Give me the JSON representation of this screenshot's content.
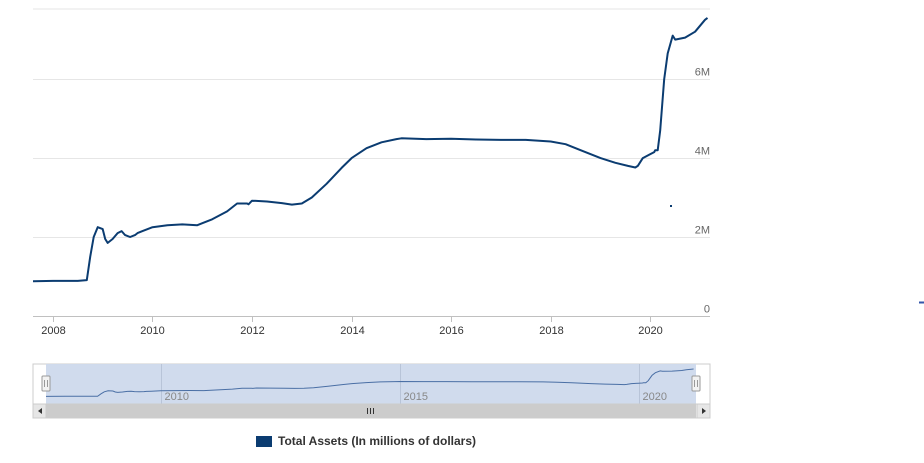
{
  "colors": {
    "series": "#0b3c71",
    "grid": "#e6e6e6",
    "axis_text": "#666666",
    "navigator_fill": "#ced9ec",
    "navigator_line": "#4a6fa5",
    "scrollbar": "#cccccc",
    "scrollbar_track": "#f2f2f2"
  },
  "chart_data": {
    "type": "line",
    "grid": true,
    "legend_position": "bottom-center",
    "ylim": [
      0,
      7800000
    ],
    "yaxis_side": "right",
    "y_ticks": [
      {
        "value": 0,
        "label": "0"
      },
      {
        "value": 2000000,
        "label": "2M"
      },
      {
        "value": 4000000,
        "label": "4M"
      },
      {
        "value": 6000000,
        "label": "6M"
      }
    ],
    "xlim": [
      2007.6,
      2021.2
    ],
    "x_ticks": [
      {
        "value": 2008,
        "label": "2008"
      },
      {
        "value": 2010,
        "label": "2010"
      },
      {
        "value": 2012,
        "label": "2012"
      },
      {
        "value": 2014,
        "label": "2014"
      },
      {
        "value": 2016,
        "label": "2016"
      },
      {
        "value": 2018,
        "label": "2018"
      },
      {
        "value": 2020,
        "label": "2020"
      }
    ],
    "navigator": {
      "x_ticks": [
        {
          "value": 2010,
          "label": "2010"
        },
        {
          "value": 2015,
          "label": "2015"
        },
        {
          "value": 2020,
          "label": "2020"
        }
      ]
    },
    "series": [
      {
        "name": "Total Assets (In millions of dollars)",
        "x": [
          2007.6,
          2008.0,
          2008.5,
          2008.68,
          2008.75,
          2008.82,
          2008.9,
          2009.0,
          2009.05,
          2009.1,
          2009.2,
          2009.3,
          2009.38,
          2009.45,
          2009.55,
          2009.65,
          2009.7,
          2009.8,
          2010.0,
          2010.3,
          2010.6,
          2010.9,
          2011.0,
          2011.2,
          2011.5,
          2011.7,
          2011.9,
          2011.93,
          2012.0,
          2012.3,
          2012.6,
          2012.8,
          2013.0,
          2013.2,
          2013.5,
          2013.8,
          2014.0,
          2014.3,
          2014.6,
          2014.9,
          2015.0,
          2015.5,
          2016.0,
          2016.5,
          2017.0,
          2017.5,
          2018.0,
          2018.3,
          2018.6,
          2019.0,
          2019.3,
          2019.55,
          2019.7,
          2019.75,
          2019.85,
          2020.0,
          2020.08,
          2020.1,
          2020.15,
          2020.2,
          2020.28,
          2020.35,
          2020.45,
          2020.5,
          2020.7,
          2020.9,
          2021.0,
          2021.1,
          2021.15
        ],
        "values": [
          880000,
          890000,
          890000,
          910000,
          1500000,
          2000000,
          2250000,
          2200000,
          1950000,
          1850000,
          1950000,
          2100000,
          2150000,
          2050000,
          2000000,
          2050000,
          2100000,
          2150000,
          2250000,
          2300000,
          2320000,
          2300000,
          2350000,
          2450000,
          2650000,
          2850000,
          2850000,
          2830000,
          2920000,
          2900000,
          2860000,
          2820000,
          2850000,
          3000000,
          3350000,
          3750000,
          4000000,
          4250000,
          4400000,
          4480000,
          4500000,
          4480000,
          4490000,
          4470000,
          4460000,
          4460000,
          4420000,
          4350000,
          4200000,
          4000000,
          3880000,
          3800000,
          3760000,
          3800000,
          4000000,
          4100000,
          4150000,
          4200000,
          4200000,
          4700000,
          6000000,
          6650000,
          7100000,
          7000000,
          7050000,
          7200000,
          7350000,
          7500000,
          7550000
        ]
      }
    ]
  }
}
